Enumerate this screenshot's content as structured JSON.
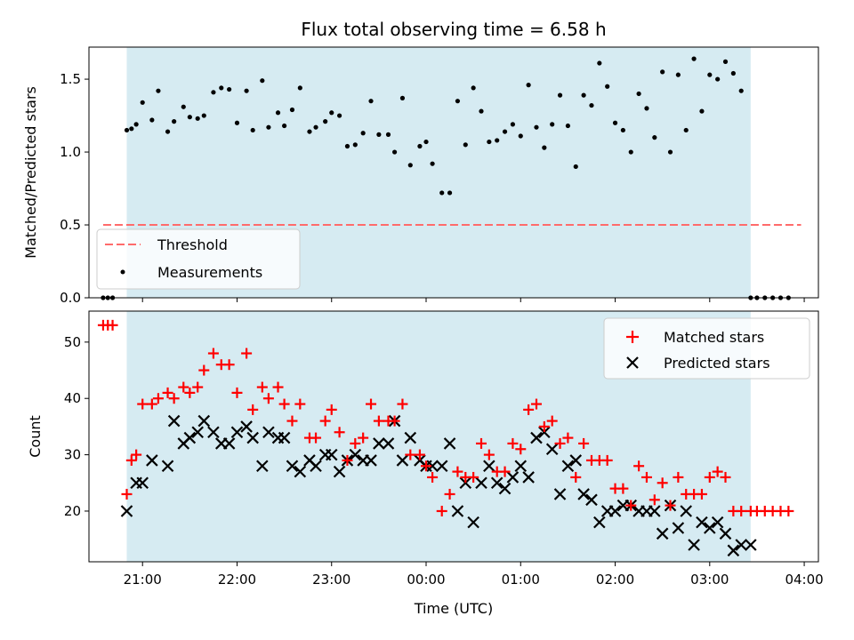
{
  "chart_data": [
    {
      "type": "scatter",
      "title": "Flux total observing time = 6.58 h",
      "xlabel": "",
      "ylabel": "Matched/Predicted stars",
      "ylim": [
        0,
        1.72
      ],
      "yticks": [
        "0.0",
        "0.5",
        "1.0",
        "1.5"
      ],
      "ytick_values": [
        0,
        0.5,
        1.0,
        1.5
      ],
      "threshold": {
        "name": "Threshold",
        "value": 0.5,
        "x_start": "20:35",
        "x_end": "03:58"
      },
      "shaded_interval": [
        "20:50",
        "03:26"
      ],
      "legend_position": "lower-left",
      "series": [
        {
          "name": "Measurements",
          "x": [
            "20:35",
            "20:38",
            "20:41",
            "20:50",
            "20:53",
            "20:56",
            "21:00",
            "21:06",
            "21:10",
            "21:16",
            "21:20",
            "21:26",
            "21:30",
            "21:35",
            "21:39",
            "21:45",
            "21:50",
            "21:55",
            "22:00",
            "22:06",
            "22:10",
            "22:16",
            "22:20",
            "22:26",
            "22:30",
            "22:35",
            "22:40",
            "22:46",
            "22:50",
            "22:56",
            "23:00",
            "23:05",
            "23:10",
            "23:15",
            "23:20",
            "23:25",
            "23:30",
            "23:36",
            "23:40",
            "23:45",
            "23:50",
            "23:56",
            "00:00",
            "00:04",
            "00:10",
            "00:15",
            "00:20",
            "00:25",
            "00:30",
            "00:35",
            "00:40",
            "00:45",
            "00:50",
            "00:55",
            "01:00",
            "01:05",
            "01:10",
            "01:15",
            "01:20",
            "01:25",
            "01:30",
            "01:35",
            "01:40",
            "01:45",
            "01:50",
            "01:55",
            "02:00",
            "02:05",
            "02:10",
            "02:15",
            "02:20",
            "02:25",
            "02:30",
            "02:35",
            "02:40",
            "02:45",
            "02:50",
            "02:55",
            "03:00",
            "03:05",
            "03:10",
            "03:15",
            "03:20",
            "03:26",
            "03:30",
            "03:35",
            "03:40",
            "03:45",
            "03:50"
          ],
          "y": [
            0,
            0,
            0,
            1.15,
            1.16,
            1.19,
            1.34,
            1.22,
            1.42,
            1.14,
            1.21,
            1.31,
            1.24,
            1.23,
            1.25,
            1.41,
            1.44,
            1.43,
            1.2,
            1.42,
            1.15,
            1.49,
            1.17,
            1.27,
            1.18,
            1.29,
            1.44,
            1.14,
            1.17,
            1.21,
            1.27,
            1.25,
            1.04,
            1.05,
            1.13,
            1.35,
            1.12,
            1.12,
            1.0,
            1.37,
            0.91,
            1.04,
            1.07,
            0.92,
            0.72,
            0.72,
            1.35,
            1.05,
            1.44,
            1.28,
            1.07,
            1.08,
            1.14,
            1.19,
            1.11,
            1.46,
            1.17,
            1.03,
            1.19,
            1.39,
            1.18,
            0.9,
            1.39,
            1.32,
            1.61,
            1.45,
            1.2,
            1.15,
            1.0,
            1.4,
            1.3,
            1.1,
            1.55,
            1.0,
            1.53,
            1.15,
            1.64,
            1.28,
            1.53,
            1.5,
            1.62,
            1.54,
            1.42,
            0,
            0,
            0,
            0,
            0,
            0
          ]
        }
      ]
    },
    {
      "type": "scatter",
      "title": "",
      "xlabel": "Time (UTC)",
      "ylabel": "Count",
      "ylim": [
        11,
        55.5
      ],
      "yticks": [
        "20",
        "30",
        "40",
        "50"
      ],
      "ytick_values": [
        20,
        30,
        40,
        50
      ],
      "xlim": [
        "20:26",
        "04:09"
      ],
      "xticks": [
        "21:00",
        "22:00",
        "23:00",
        "00:00",
        "01:00",
        "02:00",
        "03:00",
        "04:00"
      ],
      "shaded_interval": [
        "20:50",
        "03:26"
      ],
      "legend_position": "upper-right",
      "series": [
        {
          "name": "Matched stars",
          "color": "#ff0000",
          "marker": "+",
          "x": [
            "20:35",
            "20:38",
            "20:41",
            "20:50",
            "20:53",
            "20:56",
            "21:00",
            "21:06",
            "21:10",
            "21:16",
            "21:20",
            "21:26",
            "21:30",
            "21:35",
            "21:39",
            "21:45",
            "21:50",
            "21:55",
            "22:00",
            "22:06",
            "22:10",
            "22:16",
            "22:20",
            "22:26",
            "22:30",
            "22:35",
            "22:40",
            "22:46",
            "22:50",
            "22:56",
            "23:00",
            "23:05",
            "23:10",
            "23:15",
            "23:20",
            "23:25",
            "23:30",
            "23:36",
            "23:40",
            "23:45",
            "23:50",
            "23:56",
            "00:00",
            "00:04",
            "00:10",
            "00:15",
            "00:20",
            "00:25",
            "00:30",
            "00:35",
            "00:40",
            "00:45",
            "00:50",
            "00:55",
            "01:00",
            "01:05",
            "01:10",
            "01:15",
            "01:20",
            "01:25",
            "01:30",
            "01:35",
            "01:40",
            "01:45",
            "01:50",
            "01:55",
            "02:00",
            "02:05",
            "02:10",
            "02:15",
            "02:20",
            "02:25",
            "02:30",
            "02:35",
            "02:40",
            "02:45",
            "02:50",
            "02:55",
            "03:00",
            "03:05",
            "03:10",
            "03:15",
            "03:20",
            "03:26",
            "03:30",
            "03:35",
            "03:40",
            "03:45",
            "03:50"
          ],
          "y": [
            53,
            53,
            53,
            23,
            29,
            30,
            39,
            39,
            40,
            41,
            40,
            42,
            41,
            42,
            45,
            48,
            46,
            46,
            41,
            48,
            38,
            42,
            40,
            42,
            39,
            36,
            39,
            33,
            33,
            36,
            38,
            34,
            29,
            32,
            33,
            39,
            36,
            36,
            36,
            39,
            30,
            30,
            28,
            26,
            20,
            23,
            27,
            26,
            26,
            32,
            30,
            27,
            27,
            32,
            31,
            38,
            39,
            35,
            36,
            32,
            33,
            26,
            32,
            29,
            29,
            29,
            24,
            24,
            21,
            28,
            26,
            22,
            25,
            21,
            26,
            23,
            23,
            23,
            26,
            27,
            26,
            20,
            20,
            20,
            20,
            20,
            20,
            20,
            20
          ]
        },
        {
          "name": "Predicted stars",
          "color": "#000000",
          "marker": "x",
          "x": [
            "20:50",
            "20:56",
            "21:00",
            "21:06",
            "21:16",
            "21:20",
            "21:26",
            "21:30",
            "21:35",
            "21:39",
            "21:45",
            "21:50",
            "21:55",
            "22:00",
            "22:06",
            "22:10",
            "22:16",
            "22:20",
            "22:26",
            "22:30",
            "22:35",
            "22:40",
            "22:46",
            "22:50",
            "22:56",
            "23:00",
            "23:05",
            "23:10",
            "23:15",
            "23:20",
            "23:25",
            "23:30",
            "23:36",
            "23:40",
            "23:45",
            "23:50",
            "23:56",
            "00:00",
            "00:04",
            "00:10",
            "00:15",
            "00:20",
            "00:25",
            "00:30",
            "00:35",
            "00:40",
            "00:45",
            "00:50",
            "00:55",
            "01:00",
            "01:05",
            "01:10",
            "01:15",
            "01:20",
            "01:25",
            "01:30",
            "01:35",
            "01:40",
            "01:45",
            "01:50",
            "01:55",
            "02:00",
            "02:05",
            "02:10",
            "02:15",
            "02:20",
            "02:25",
            "02:30",
            "02:35",
            "02:40",
            "02:45",
            "02:50",
            "02:55",
            "03:00",
            "03:05",
            "03:10",
            "03:15",
            "03:20",
            "03:26"
          ],
          "y": [
            20,
            25,
            25,
            29,
            28,
            36,
            32,
            33,
            34,
            36,
            34,
            32,
            32,
            34,
            35,
            33,
            28,
            34,
            33,
            33,
            28,
            27,
            29,
            28,
            30,
            30,
            27,
            29,
            30,
            29,
            29,
            32,
            32,
            36,
            29,
            33,
            29,
            28,
            28,
            28,
            32,
            20,
            25,
            18,
            25,
            28,
            25,
            24,
            26,
            28,
            26,
            33,
            34,
            31,
            23,
            28,
            29,
            23,
            22,
            18,
            20,
            20,
            21,
            21,
            20,
            20,
            20,
            16,
            21,
            17,
            20,
            14,
            18,
            17,
            18,
            16,
            13,
            14,
            14
          ]
        }
      ]
    }
  ]
}
